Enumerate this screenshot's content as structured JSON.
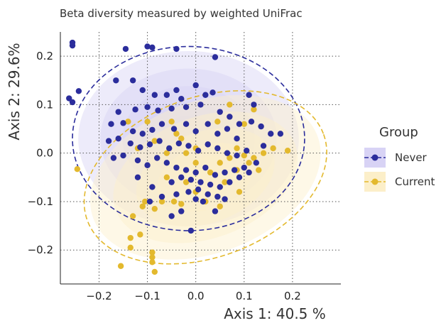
{
  "chart_data": {
    "type": "scatter",
    "title": "Beta diversity measured by weighted UniFrac",
    "xlabel": "Axis 1:  40.5 %",
    "ylabel": "Axis 2: 29.6%",
    "xlim": [
      -0.28,
      0.3
    ],
    "ylim": [
      -0.27,
      0.25
    ],
    "xticks": [
      -0.2,
      -0.1,
      0.0,
      0.1,
      0.2
    ],
    "xtick_labels": [
      "−0.2",
      "−0.1",
      "0.0",
      "0.1",
      "0.2"
    ],
    "yticks": [
      -0.2,
      -0.1,
      0.0,
      0.1,
      0.2
    ],
    "ytick_labels": [
      "−0.2",
      "−0.1",
      "0.0",
      "0.1",
      "0.2"
    ],
    "grid": "dotted",
    "legend": {
      "title": "Group",
      "position": "right"
    },
    "series": [
      {
        "name": "Never",
        "color": "#2b2d9c",
        "fill": "#d8d3f5",
        "ellipse": {
          "center": [
            -0.015,
            0.03
          ],
          "rx": 0.24,
          "ry": 0.19
        },
        "points": [
          [
            -0.255,
            0.228
          ],
          [
            -0.255,
            0.222
          ],
          [
            -0.262,
            0.113
          ],
          [
            -0.242,
            0.128
          ],
          [
            -0.255,
            0.105
          ],
          [
            -0.145,
            0.215
          ],
          [
            -0.1,
            0.22
          ],
          [
            -0.09,
            0.218
          ],
          [
            -0.04,
            0.215
          ],
          [
            0.04,
            0.198
          ],
          [
            -0.165,
            0.15
          ],
          [
            -0.13,
            0.15
          ],
          [
            -0.11,
            0.13
          ],
          [
            -0.085,
            0.12
          ],
          [
            -0.06,
            0.12
          ],
          [
            -0.04,
            0.13
          ],
          [
            -0.03,
            0.112
          ],
          [
            0.0,
            0.14
          ],
          [
            0.02,
            0.12
          ],
          [
            0.035,
            0.125
          ],
          [
            -0.16,
            0.085
          ],
          [
            -0.125,
            0.09
          ],
          [
            -0.1,
            0.095
          ],
          [
            -0.078,
            0.088
          ],
          [
            -0.05,
            0.092
          ],
          [
            -0.02,
            0.095
          ],
          [
            0.01,
            0.1
          ],
          [
            0.05,
            0.085
          ],
          [
            0.07,
            0.075
          ],
          [
            0.09,
            0.06
          ],
          [
            0.11,
            0.12
          ],
          [
            0.12,
            0.1
          ],
          [
            -0.175,
            0.06
          ],
          [
            -0.15,
            0.062
          ],
          [
            -0.13,
            0.045
          ],
          [
            -0.11,
            0.04
          ],
          [
            -0.09,
            0.048
          ],
          [
            -0.07,
            0.06
          ],
          [
            -0.045,
            0.05
          ],
          [
            -0.02,
            0.06
          ],
          [
            0.0,
            0.045
          ],
          [
            0.025,
            0.06
          ],
          [
            0.045,
            0.04
          ],
          [
            0.065,
            0.05
          ],
          [
            0.085,
            0.03
          ],
          [
            0.115,
            0.065
          ],
          [
            0.135,
            0.055
          ],
          [
            0.155,
            0.04
          ],
          [
            0.175,
            0.04
          ],
          [
            -0.18,
            0.025
          ],
          [
            -0.16,
            0.03
          ],
          [
            -0.135,
            0.02
          ],
          [
            -0.115,
            0.012
          ],
          [
            -0.095,
            0.018
          ],
          [
            -0.075,
            0.025
          ],
          [
            -0.055,
            0.01
          ],
          [
            -0.035,
            0.02
          ],
          [
            -0.015,
            0.015
          ],
          [
            0.005,
            0.005
          ],
          [
            0.025,
            0.018
          ],
          [
            0.045,
            0.01
          ],
          [
            0.065,
            0.0
          ],
          [
            0.085,
            -0.005
          ],
          [
            0.105,
            0.005
          ],
          [
            0.14,
            0.015
          ],
          [
            -0.17,
            -0.01
          ],
          [
            -0.15,
            -0.005
          ],
          [
            -0.12,
            -0.015
          ],
          [
            -0.1,
            -0.025
          ],
          [
            -0.08,
            -0.01
          ],
          [
            -0.06,
            -0.02
          ],
          [
            -0.04,
            -0.03
          ],
          [
            -0.02,
            -0.035
          ],
          [
            0.0,
            -0.04
          ],
          [
            0.02,
            -0.03
          ],
          [
            0.04,
            -0.045
          ],
          [
            0.06,
            -0.04
          ],
          [
            0.08,
            -0.035
          ],
          [
            0.1,
            -0.03
          ],
          [
            0.125,
            -0.02
          ],
          [
            -0.05,
            -0.06
          ],
          [
            -0.03,
            -0.05
          ],
          [
            -0.01,
            -0.055
          ],
          [
            0.01,
            -0.06
          ],
          [
            0.03,
            -0.065
          ],
          [
            0.05,
            -0.07
          ],
          [
            0.07,
            -0.06
          ],
          [
            0.09,
            -0.05
          ],
          [
            -0.015,
            -0.08
          ],
          [
            0.005,
            -0.075
          ],
          [
            0.025,
            -0.085
          ],
          [
            0.045,
            -0.09
          ],
          [
            -0.04,
            -0.085
          ],
          [
            -0.09,
            -0.07
          ],
          [
            -0.12,
            -0.05
          ],
          [
            0.0,
            -0.095
          ],
          [
            0.015,
            -0.1
          ],
          [
            -0.03,
            -0.12
          ],
          [
            -0.05,
            -0.13
          ],
          [
            0.04,
            -0.12
          ],
          [
            -0.01,
            -0.16
          ],
          [
            -0.095,
            -0.1
          ],
          [
            -0.07,
            -0.09
          ],
          [
            0.06,
            -0.095
          ],
          [
            0.11,
            -0.04
          ]
        ]
      },
      {
        "name": "Current",
        "color": "#e3b92e",
        "fill": "#fcefc9",
        "ellipse": {
          "center": [
            0.02,
            -0.05
          ],
          "rx": 0.26,
          "ry": 0.165,
          "angle": 20
        },
        "points": [
          [
            -0.155,
            -0.233
          ],
          [
            -0.135,
            -0.195
          ],
          [
            -0.135,
            -0.175
          ],
          [
            -0.115,
            -0.168
          ],
          [
            -0.09,
            -0.205
          ],
          [
            -0.09,
            -0.215
          ],
          [
            -0.09,
            -0.225
          ],
          [
            -0.085,
            -0.245
          ],
          [
            -0.13,
            -0.13
          ],
          [
            -0.11,
            -0.11
          ],
          [
            -0.105,
            -0.1
          ],
          [
            -0.085,
            -0.115
          ],
          [
            -0.07,
            -0.1
          ],
          [
            -0.045,
            -0.1
          ],
          [
            -0.03,
            -0.105
          ],
          [
            -0.245,
            -0.033
          ],
          [
            -0.14,
            0.065
          ],
          [
            -0.085,
            0.025
          ],
          [
            -0.06,
            0.0
          ],
          [
            -0.05,
            0.065
          ],
          [
            -0.03,
            0.03
          ],
          [
            -0.02,
            0.0
          ],
          [
            0.0,
            0.01
          ],
          [
            0.0,
            -0.02
          ],
          [
            0.03,
            -0.04
          ],
          [
            0.05,
            -0.02
          ],
          [
            0.06,
            -0.06
          ],
          [
            0.07,
            -0.01
          ],
          [
            0.085,
            0.01
          ],
          [
            0.1,
            -0.005
          ],
          [
            0.11,
            -0.02
          ],
          [
            0.12,
            -0.01
          ],
          [
            0.13,
            -0.035
          ],
          [
            0.14,
            0.0
          ],
          [
            0.16,
            0.01
          ],
          [
            0.19,
            0.005
          ],
          [
            0.1,
            0.06
          ],
          [
            0.12,
            0.09
          ],
          [
            -0.1,
            0.065
          ],
          [
            -0.12,
            0.01
          ],
          [
            -0.02,
            -0.06
          ],
          [
            0.0,
            -0.08
          ],
          [
            0.05,
            -0.11
          ],
          [
            0.09,
            -0.08
          ],
          [
            0.085,
            -0.035
          ],
          [
            0.07,
            0.1
          ],
          [
            0.045,
            0.065
          ],
          [
            -0.04,
            0.04
          ],
          [
            0.02,
            -0.1
          ],
          [
            -0.06,
            -0.05
          ]
        ]
      }
    ]
  }
}
